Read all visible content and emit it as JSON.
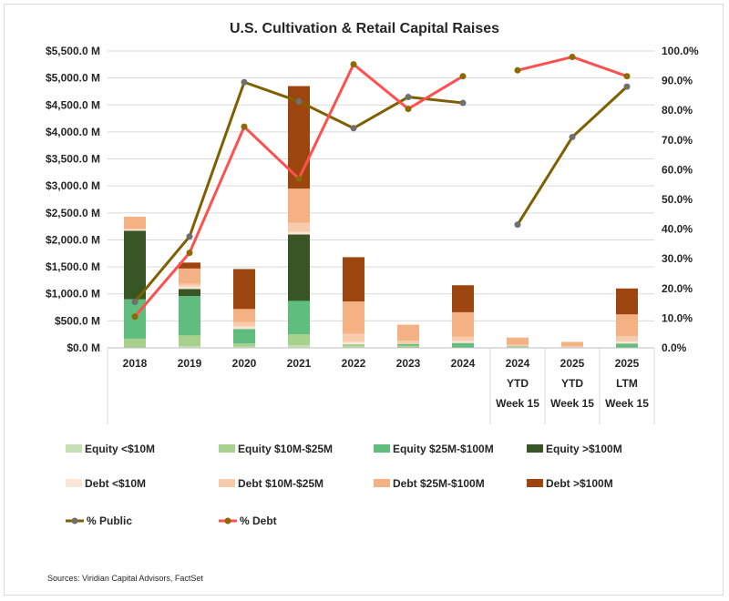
{
  "chart_data": {
    "type": "bar",
    "stacked": true,
    "title": "U.S. Cultivation & Retail Capital Raises",
    "categories": [
      [
        "2018"
      ],
      [
        "2019"
      ],
      [
        "2020"
      ],
      [
        "2021"
      ],
      [
        "2022"
      ],
      [
        "2023"
      ],
      [
        "2024"
      ],
      [
        "2024",
        "YTD",
        "Week 15"
      ],
      [
        "2025",
        "YTD",
        "Week 15"
      ],
      [
        "2025",
        "LTM",
        "Week 15"
      ]
    ],
    "y_left": {
      "min": 0,
      "max": 5500,
      "step": 500,
      "ticks": [
        "$0.0 M",
        "$500.0 M",
        "$1,000.0 M",
        "$1,500.0 M",
        "$2,000.0 M",
        "$2,500.0 M",
        "$3,000.0 M",
        "$3,500.0 M",
        "$4,000.0 M",
        "$4,500.0 M",
        "$5,000.0 M",
        "$5,500.0 M"
      ]
    },
    "y_right": {
      "min": 0,
      "max": 100,
      "step": 10,
      "ticks": [
        "0.0%",
        "10.0%",
        "20.0%",
        "30.0%",
        "40.0%",
        "50.0%",
        "60.0%",
        "70.0%",
        "80.0%",
        "90.0%",
        "100.0%"
      ]
    },
    "grid": true,
    "legend_position": "bottom",
    "series": [
      {
        "name": "Equity <$10M",
        "color": "#C5E0B4",
        "values": [
          0,
          30,
          20,
          50,
          20,
          0,
          0,
          10,
          0,
          0
        ]
      },
      {
        "name": "Equity $10M-$25M",
        "color": "#A9D18E",
        "values": [
          170,
          200,
          60,
          200,
          50,
          40,
          0,
          10,
          0,
          0
        ]
      },
      {
        "name": "Equity $25M-$100M",
        "color": "#5FBE7D",
        "values": [
          730,
          730,
          270,
          620,
          0,
          30,
          90,
          10,
          0,
          80
        ]
      },
      {
        "name": "Equity >$100M",
        "color": "#375623",
        "values": [
          1270,
          130,
          0,
          1230,
          0,
          0,
          0,
          0,
          0,
          0
        ]
      },
      {
        "name": "Debt <$10M",
        "color": "#FBE5D6",
        "values": [
          30,
          50,
          50,
          50,
          40,
          0,
          40,
          0,
          0,
          40
        ]
      },
      {
        "name": "Debt $10M-$25M",
        "color": "#F8CBAD",
        "values": [
          0,
          50,
          80,
          170,
          150,
          60,
          80,
          30,
          30,
          100
        ]
      },
      {
        "name": "Debt $25M-$100M",
        "color": "#F4B183",
        "values": [
          230,
          280,
          240,
          630,
          600,
          300,
          450,
          130,
          80,
          400
        ]
      },
      {
        "name": "Debt >$100M",
        "color": "#9C450F",
        "values": [
          0,
          110,
          740,
          1900,
          820,
          0,
          500,
          0,
          0,
          480
        ]
      }
    ],
    "lines": [
      {
        "name": "% Public",
        "color": "#7F6000",
        "marker": "#6F6F6F",
        "axis": "right",
        "segments": [
          [
            0,
            6
          ],
          [
            7,
            9
          ]
        ],
        "values": [
          15.5,
          37.5,
          89.5,
          83,
          74,
          84.5,
          82.5,
          41.5,
          71,
          88
        ]
      },
      {
        "name": "% Debt",
        "color": "#FF5050",
        "marker": "#8C6A00",
        "axis": "right",
        "segments": [
          [
            0,
            6
          ],
          [
            7,
            9
          ]
        ],
        "values": [
          10.5,
          32,
          74.5,
          57,
          95.5,
          80.5,
          91.5,
          93.5,
          98,
          91.5
        ]
      }
    ],
    "source": "Sources: Viridian Capital Advisors, FactSet"
  }
}
